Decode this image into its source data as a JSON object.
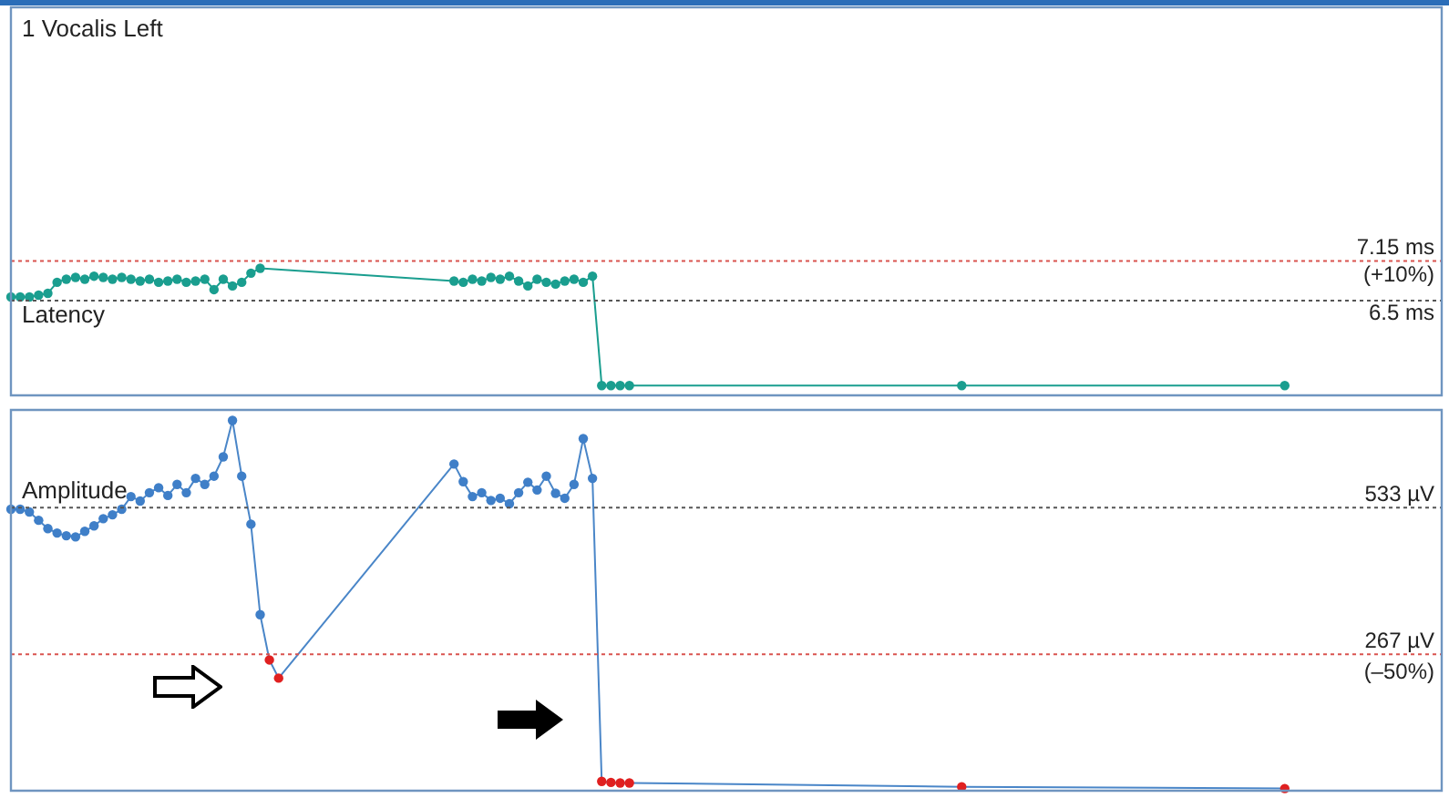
{
  "chart_data": [
    {
      "type": "line",
      "title": "1 Vocalis Left",
      "ylabel": "Latency",
      "marker": "circle",
      "line_style": "solid",
      "legend": false,
      "tick_labels": false,
      "categories": [
        null,
        null,
        null,
        null,
        null,
        null,
        null,
        null,
        null,
        null,
        null,
        null,
        null,
        null,
        null,
        null,
        null,
        null,
        null,
        null,
        null,
        null,
        null,
        null,
        null,
        null,
        null,
        null,
        null,
        null,
        null,
        null,
        null,
        null,
        null,
        null,
        null,
        null,
        null,
        null,
        null,
        null,
        null,
        null,
        null,
        null,
        null,
        null,
        null,
        null,
        null,
        null,
        null,
        null,
        null,
        null,
        null,
        null,
        null,
        null,
        null,
        null,
        null,
        null,
        null,
        null,
        null,
        null,
        null,
        null,
        null,
        null,
        null,
        null,
        null,
        null,
        null,
        null,
        null,
        null,
        null,
        null,
        null,
        null,
        null,
        null,
        null,
        null,
        null,
        null,
        null,
        null,
        null,
        null,
        null,
        null,
        null,
        null,
        null,
        null,
        null,
        null,
        null,
        null,
        null,
        null,
        null,
        null,
        null,
        null,
        null,
        null,
        null,
        null,
        null,
        null,
        null,
        null,
        null,
        null,
        null,
        null,
        null,
        null,
        null,
        null,
        null,
        null,
        null,
        null,
        null,
        null,
        null,
        null,
        null,
        null,
        null,
        null,
        null,
        null,
        null,
        null,
        null,
        null,
        null,
        null,
        null,
        null,
        null,
        null,
        null,
        null,
        null,
        null,
        null,
        null
      ],
      "ylim": [
        4.95,
        11.3
      ],
      "series": [
        {
          "color": "#1a9e8f",
          "values": [
            6.56,
            6.56,
            6.56,
            6.59,
            6.62,
            6.8,
            6.85,
            6.88,
            6.85,
            6.9,
            6.88,
            6.85,
            6.88,
            6.85,
            6.82,
            6.85,
            6.8,
            6.82,
            6.85,
            6.8,
            6.82,
            6.85,
            6.68,
            6.85,
            6.74,
            6.8,
            6.95,
            7.03,
            null,
            null,
            null,
            null,
            null,
            null,
            null,
            null,
            null,
            null,
            null,
            null,
            null,
            null,
            null,
            null,
            null,
            null,
            null,
            null,
            6.82,
            6.8,
            6.85,
            6.82,
            6.88,
            6.85,
            6.9,
            6.82,
            6.74,
            6.85,
            6.8,
            6.77,
            6.82,
            6.85,
            6.8,
            6.9,
            5.11,
            5.11,
            5.11,
            5.11,
            null,
            null,
            null,
            null,
            null,
            null,
            null,
            null,
            null,
            null,
            null,
            null,
            null,
            null,
            null,
            null,
            null,
            null,
            null,
            null,
            null,
            null,
            null,
            null,
            null,
            null,
            null,
            null,
            null,
            null,
            null,
            null,
            null,
            null,
            null,
            5.11,
            null,
            null,
            null,
            null,
            null,
            null,
            null,
            null,
            null,
            null,
            null,
            null,
            null,
            null,
            null,
            null,
            null,
            null,
            null,
            null,
            null,
            null,
            null,
            null,
            null,
            null,
            null,
            null,
            null,
            null,
            null,
            null,
            null,
            null,
            5.11,
            null,
            null,
            null,
            null,
            null,
            null,
            null,
            null,
            null,
            null,
            null,
            null,
            null,
            null,
            null,
            null,
            null
          ]
        }
      ],
      "ref_lines": [
        {
          "axis": "y",
          "value": 7.15,
          "label": "7.15 ms",
          "color": "#d9534f",
          "line_style": "dotted"
        },
        {
          "axis": "y",
          "value": 6.5,
          "label": "6.5 ms",
          "color": "#555555",
          "line_style": "dotted"
        }
      ],
      "annotations": [
        "(+10%)"
      ]
    },
    {
      "type": "line",
      "ylabel": "Amplitude",
      "marker": "circle",
      "line_style": "solid",
      "legend": false,
      "tick_labels": false,
      "categories": [
        null,
        null,
        null,
        null,
        null,
        null,
        null,
        null,
        null,
        null,
        null,
        null,
        null,
        null,
        null,
        null,
        null,
        null,
        null,
        null,
        null,
        null,
        null,
        null,
        null,
        null,
        null,
        null,
        null,
        null,
        null,
        null,
        null,
        null,
        null,
        null,
        null,
        null,
        null,
        null,
        null,
        null,
        null,
        null,
        null,
        null,
        null,
        null,
        null,
        null,
        null,
        null,
        null,
        null,
        null,
        null,
        null,
        null,
        null,
        null,
        null,
        null,
        null,
        null,
        null,
        null,
        null,
        null,
        null,
        null,
        null,
        null,
        null,
        null,
        null,
        null,
        null,
        null,
        null,
        null,
        null,
        null,
        null,
        null,
        null,
        null,
        null,
        null,
        null,
        null,
        null,
        null,
        null,
        null,
        null,
        null,
        null,
        null,
        null,
        null,
        null,
        null,
        null,
        null,
        null,
        null,
        null,
        null,
        null,
        null,
        null,
        null,
        null,
        null,
        null,
        null,
        null,
        null,
        null,
        null,
        null,
        null,
        null,
        null,
        null,
        null,
        null,
        null,
        null,
        null,
        null,
        null,
        null,
        null,
        null,
        null,
        null,
        null,
        null,
        null,
        null,
        null,
        null,
        null,
        null,
        null,
        null,
        null,
        null,
        null,
        null,
        null,
        null,
        null,
        null,
        null
      ],
      "ylim": [
        20,
        710
      ],
      "series": [
        {
          "color": "#4a86c8",
          "values": [
            530,
            530,
            525,
            510,
            495,
            487,
            482,
            480,
            490,
            500,
            513,
            520,
            530,
            553,
            545,
            560,
            569,
            555,
            575,
            560,
            586,
            575,
            590,
            625,
            691,
            590,
            503,
            339,
            257,
            224,
            null,
            null,
            null,
            null,
            null,
            null,
            null,
            null,
            null,
            null,
            null,
            null,
            null,
            null,
            null,
            null,
            null,
            null,
            612,
            580,
            553,
            560,
            546,
            550,
            540,
            560,
            579,
            565,
            590,
            559,
            550,
            575,
            658,
            586,
            37,
            35,
            34,
            34,
            null,
            null,
            null,
            null,
            null,
            null,
            null,
            null,
            null,
            null,
            null,
            null,
            null,
            null,
            null,
            null,
            null,
            null,
            null,
            null,
            null,
            null,
            null,
            null,
            null,
            null,
            null,
            null,
            null,
            null,
            null,
            null,
            null,
            null,
            null,
            27,
            null,
            null,
            null,
            null,
            null,
            null,
            null,
            null,
            null,
            null,
            null,
            null,
            null,
            null,
            null,
            null,
            null,
            null,
            null,
            null,
            null,
            null,
            null,
            null,
            null,
            null,
            null,
            null,
            null,
            null,
            null,
            null,
            null,
            null,
            24,
            null,
            null,
            null,
            null,
            null,
            null,
            null,
            null,
            null,
            null,
            null,
            null,
            null,
            null,
            null,
            null,
            null
          ],
          "colors": [
            "#3f7fc8",
            "#3f7fc8",
            "#3f7fc8",
            "#3f7fc8",
            "#3f7fc8",
            "#3f7fc8",
            "#3f7fc8",
            "#3f7fc8",
            "#3f7fc8",
            "#3f7fc8",
            "#3f7fc8",
            "#3f7fc8",
            "#3f7fc8",
            "#3f7fc8",
            "#3f7fc8",
            "#3f7fc8",
            "#3f7fc8",
            "#3f7fc8",
            "#3f7fc8",
            "#3f7fc8",
            "#3f7fc8",
            "#3f7fc8",
            "#3f7fc8",
            "#3f7fc8",
            "#3f7fc8",
            "#3f7fc8",
            "#3f7fc8",
            "#3f7fc8",
            "#e02020",
            "#e02020",
            null,
            null,
            null,
            null,
            null,
            null,
            null,
            null,
            null,
            null,
            null,
            null,
            null,
            null,
            null,
            null,
            null,
            null,
            "#3f7fc8",
            "#3f7fc8",
            "#3f7fc8",
            "#3f7fc8",
            "#3f7fc8",
            "#3f7fc8",
            "#3f7fc8",
            "#3f7fc8",
            "#3f7fc8",
            "#3f7fc8",
            "#3f7fc8",
            "#3f7fc8",
            "#3f7fc8",
            "#3f7fc8",
            "#3f7fc8",
            "#3f7fc8",
            "#e02020",
            "#e02020",
            "#e02020",
            "#e02020",
            null,
            null,
            null,
            null,
            null,
            null,
            null,
            null,
            null,
            null,
            null,
            null,
            null,
            null,
            null,
            null,
            null,
            null,
            null,
            null,
            null,
            null,
            null,
            null,
            null,
            null,
            null,
            null,
            null,
            null,
            null,
            null,
            null,
            null,
            null,
            "#e02020",
            null,
            null,
            null,
            null,
            null,
            null,
            null,
            null,
            null,
            null,
            null,
            null,
            null,
            null,
            null,
            null,
            null,
            null,
            null,
            null,
            null,
            null,
            null,
            null,
            null,
            null,
            null,
            null,
            null,
            null,
            null,
            null,
            null,
            null,
            "#e02020",
            null,
            null,
            null,
            null,
            null,
            null,
            null,
            null,
            null,
            null,
            null,
            null,
            null,
            null,
            null,
            null,
            null
          ]
        }
      ],
      "ref_lines": [
        {
          "axis": "y",
          "value": 533,
          "label": "533 µV",
          "color": "#555555",
          "line_style": "dotted"
        },
        {
          "axis": "y",
          "value": 267,
          "label": "267 µV",
          "color": "#d9534f",
          "line_style": "dotted"
        }
      ],
      "annotations": [
        "(–50%)"
      ]
    }
  ]
}
